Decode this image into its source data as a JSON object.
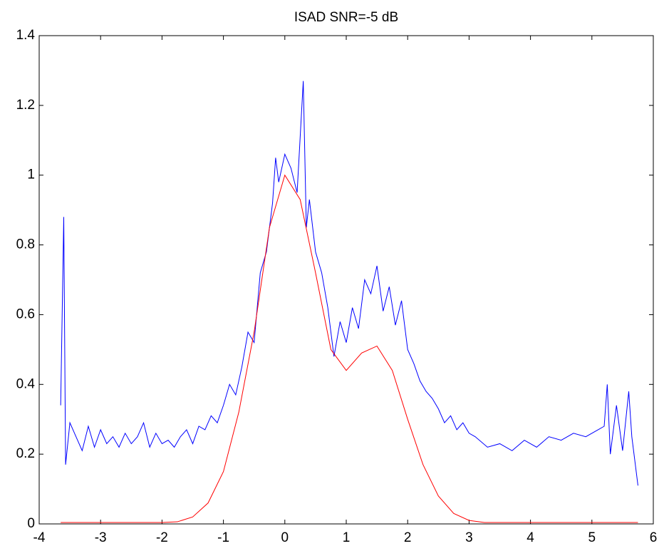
{
  "chart_data": {
    "type": "line",
    "title": "ISAD SNR=-5 dB",
    "xlim": [
      -4,
      6
    ],
    "xticks": [
      -4,
      -3,
      -2,
      -1,
      0,
      1,
      2,
      3,
      4,
      5,
      6
    ],
    "ylim": [
      0,
      1.4
    ],
    "yticks": [
      0,
      0.2,
      0.4,
      0.6,
      0.8,
      1,
      1.2,
      1.4
    ],
    "grid": false,
    "series": [
      {
        "color": "#0000ff",
        "x": [
          -3.65,
          -3.6,
          -3.57,
          -3.5,
          -3.4,
          -3.3,
          -3.2,
          -3.1,
          -3.0,
          -2.9,
          -2.8,
          -2.7,
          -2.6,
          -2.5,
          -2.4,
          -2.3,
          -2.2,
          -2.1,
          -2.0,
          -1.9,
          -1.8,
          -1.7,
          -1.6,
          -1.5,
          -1.4,
          -1.3,
          -1.2,
          -1.1,
          -1.0,
          -0.9,
          -0.8,
          -0.7,
          -0.6,
          -0.5,
          -0.4,
          -0.3,
          -0.2,
          -0.15,
          -0.1,
          0.0,
          0.1,
          0.2,
          0.3,
          0.35,
          0.4,
          0.5,
          0.6,
          0.7,
          0.8,
          0.9,
          1.0,
          1.1,
          1.2,
          1.3,
          1.4,
          1.5,
          1.6,
          1.7,
          1.8,
          1.9,
          2.0,
          2.1,
          2.2,
          2.3,
          2.4,
          2.5,
          2.6,
          2.7,
          2.8,
          2.9,
          3.0,
          3.1,
          3.3,
          3.5,
          3.7,
          3.9,
          4.1,
          4.3,
          4.5,
          4.7,
          4.9,
          5.1,
          5.2,
          5.25,
          5.3,
          5.4,
          5.5,
          5.6,
          5.65,
          5.75
        ],
        "values": [
          0.34,
          0.88,
          0.17,
          0.29,
          0.25,
          0.21,
          0.28,
          0.22,
          0.27,
          0.23,
          0.25,
          0.22,
          0.26,
          0.23,
          0.25,
          0.29,
          0.22,
          0.26,
          0.23,
          0.24,
          0.22,
          0.25,
          0.27,
          0.23,
          0.28,
          0.27,
          0.31,
          0.29,
          0.34,
          0.4,
          0.37,
          0.45,
          0.55,
          0.52,
          0.72,
          0.78,
          0.92,
          1.05,
          0.98,
          1.06,
          1.02,
          0.95,
          1.27,
          0.85,
          0.93,
          0.78,
          0.72,
          0.62,
          0.48,
          0.58,
          0.52,
          0.62,
          0.56,
          0.7,
          0.66,
          0.74,
          0.61,
          0.68,
          0.57,
          0.64,
          0.5,
          0.46,
          0.41,
          0.38,
          0.36,
          0.33,
          0.29,
          0.31,
          0.27,
          0.29,
          0.26,
          0.25,
          0.22,
          0.23,
          0.21,
          0.24,
          0.22,
          0.25,
          0.24,
          0.26,
          0.25,
          0.27,
          0.28,
          0.4,
          0.2,
          0.34,
          0.21,
          0.38,
          0.25,
          0.11
        ]
      },
      {
        "color": "#ff0000",
        "x": [
          -3.65,
          -2.0,
          -1.75,
          -1.5,
          -1.25,
          -1.0,
          -0.75,
          -0.5,
          -0.25,
          0.0,
          0.25,
          0.5,
          0.75,
          1.0,
          1.25,
          1.5,
          1.75,
          2.0,
          2.25,
          2.5,
          2.75,
          3.0,
          3.25,
          5.75
        ],
        "values": [
          0.004,
          0.004,
          0.006,
          0.02,
          0.06,
          0.15,
          0.32,
          0.55,
          0.85,
          1.0,
          0.93,
          0.72,
          0.5,
          0.44,
          0.49,
          0.51,
          0.44,
          0.3,
          0.17,
          0.08,
          0.03,
          0.01,
          0.004,
          0.004
        ]
      }
    ]
  }
}
